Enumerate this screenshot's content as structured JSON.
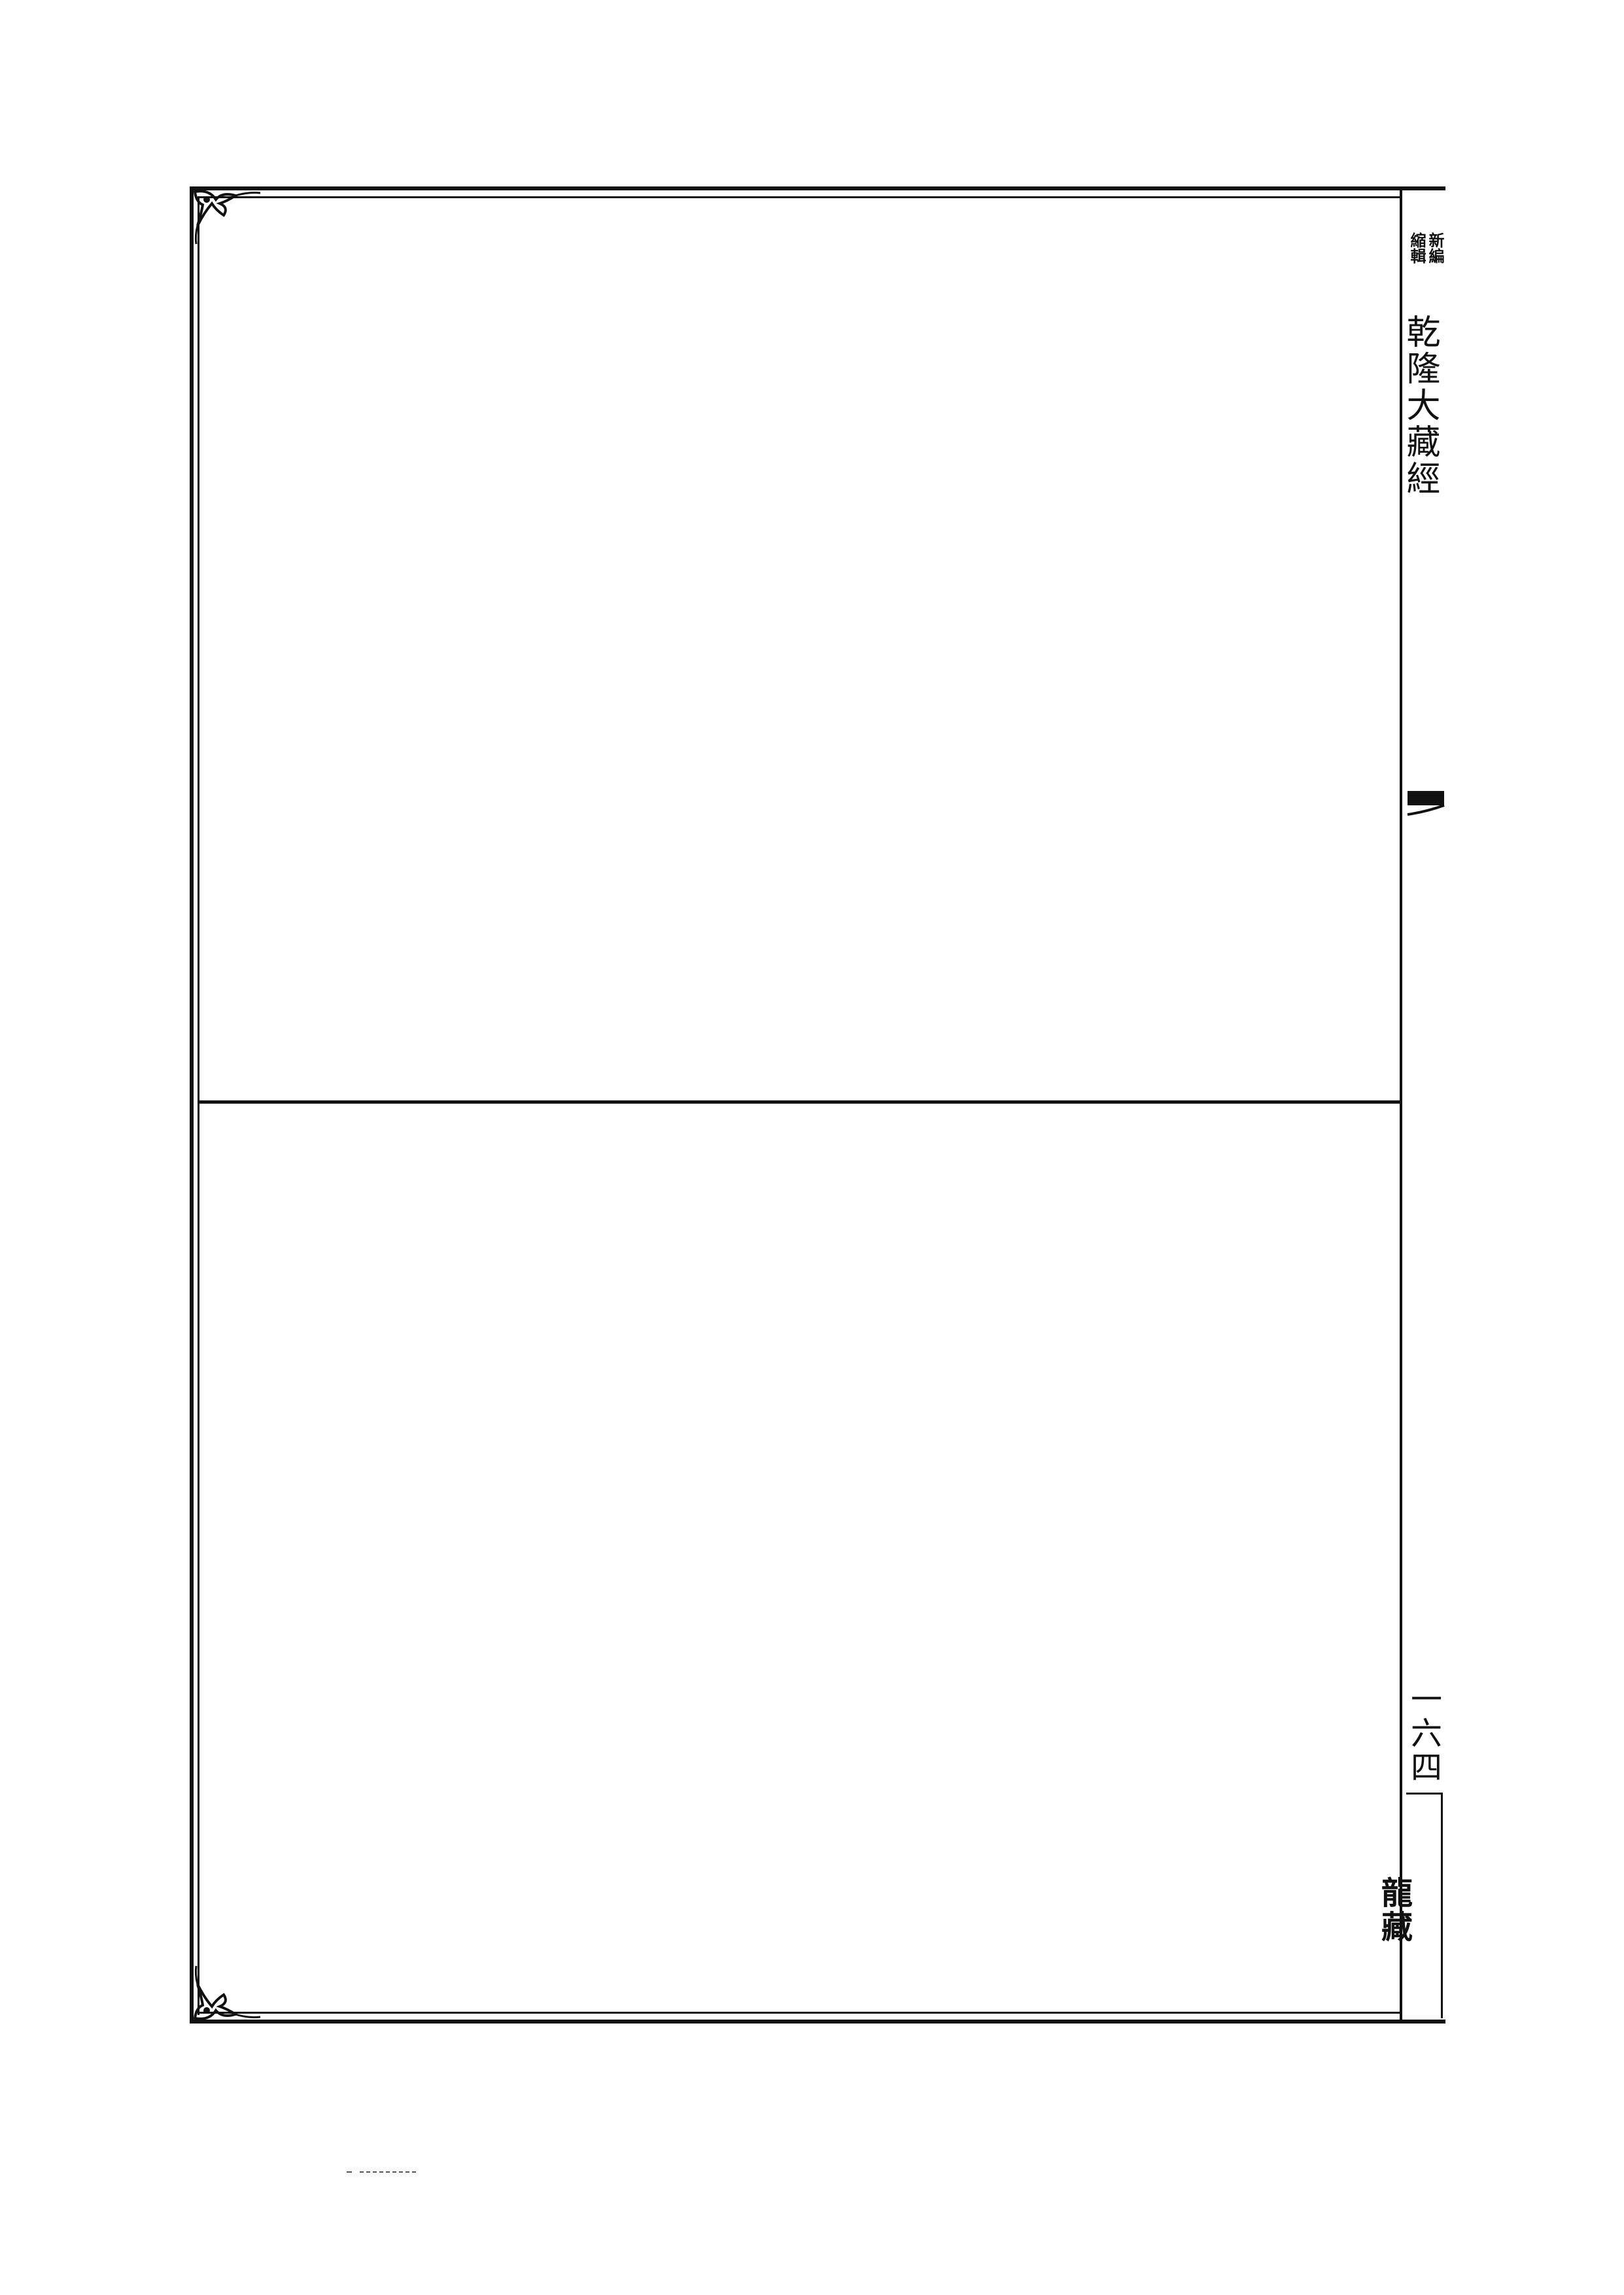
{
  "spine": {
    "series_label_col1": "新編",
    "series_label_col2": "縮輯",
    "title": "乾隆大藏經",
    "page_number": "一六四",
    "volume_label": "龍藏"
  }
}
